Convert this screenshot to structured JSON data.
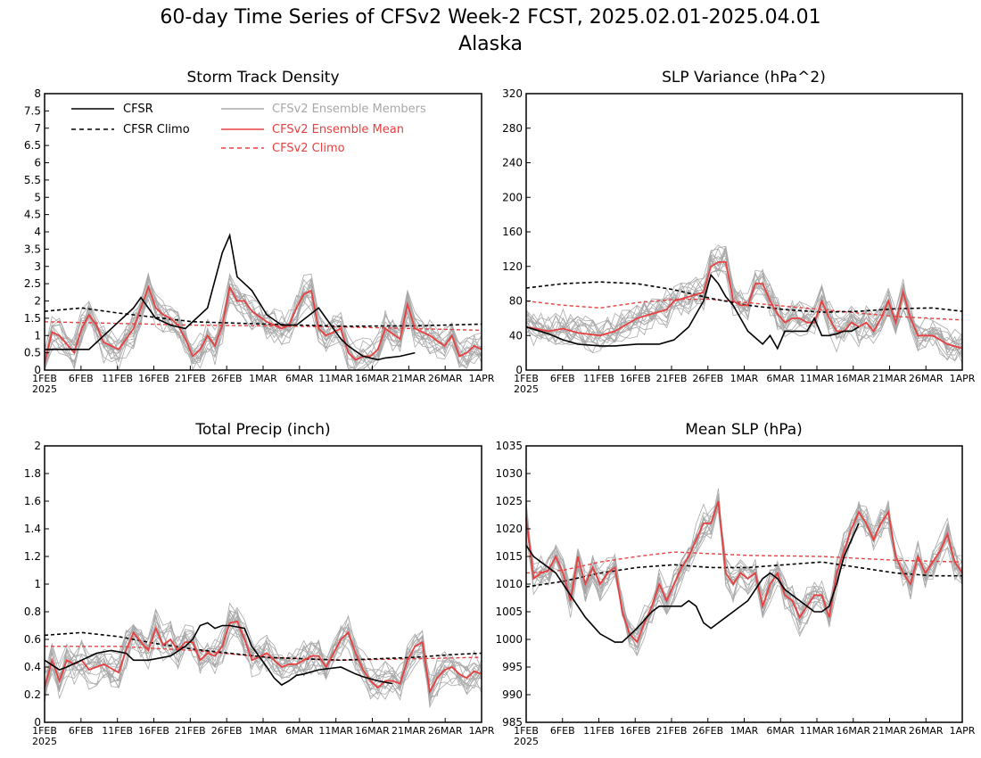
{
  "figure": {
    "title": "60-day Time Series of CFSv2 Week-2 FCST, 2025.02.01-2025.04.01",
    "subtitle": "Alaska",
    "x_ticks": [
      "1FEB",
      "6FEB",
      "11FEB",
      "16FEB",
      "21FEB",
      "26FEB",
      "1MAR",
      "6MAR",
      "11MAR",
      "16MAR",
      "21MAR",
      "26MAR",
      "1APR"
    ],
    "x_year_label": "2025"
  },
  "legend": {
    "cfsr": "CFSR",
    "cfsr_climo": "CFSR Climo",
    "ens_members": "CFSv2 Ensemble Members",
    "ens_mean": "CFSv2 Ensemble Mean",
    "cfsv2_climo": "CFSv2 Climo"
  },
  "colors": {
    "cfsr": "#000000",
    "cfsv2_mean": "#e84040",
    "members": "#a8a8a8",
    "cfsv2_climo": "#e84040"
  },
  "chart_data": [
    {
      "type": "line",
      "title": "Storm Track Density",
      "ylim": [
        0,
        8
      ],
      "yticks": [
        "0",
        "0.5",
        "1",
        "1.5",
        "2",
        "2.5",
        "3",
        "3.5",
        "4",
        "4.5",
        "5",
        "5.5",
        "6",
        "6.5",
        "7",
        "7.5",
        "8"
      ],
      "cfsr": {
        "x": [
          0,
          3,
          6,
          8,
          10,
          12,
          13,
          15,
          17,
          19,
          22,
          24,
          25,
          26,
          27,
          28,
          30,
          32,
          34,
          37,
          39,
          40,
          41,
          43,
          45,
          46,
          48,
          50
        ],
        "y": [
          0.6,
          0.6,
          0.6,
          1.0,
          1.4,
          1.8,
          2.1,
          1.5,
          1.3,
          1.2,
          1.8,
          3.4,
          3.9,
          2.7,
          2.5,
          2.3,
          1.6,
          1.3,
          1.3,
          1.8,
          1.2,
          0.9,
          0.7,
          0.4,
          0.3,
          0.35,
          0.4,
          0.5
        ]
      },
      "cfsr_climo": {
        "x": [
          0,
          5,
          10,
          20,
          30,
          40,
          50,
          59
        ],
        "y": [
          1.7,
          1.8,
          1.65,
          1.4,
          1.33,
          1.27,
          1.28,
          1.33
        ]
      },
      "cfsv2_mean": {
        "x": [
          0,
          1,
          2,
          4,
          5,
          6,
          7,
          8,
          10,
          12,
          13,
          14,
          15,
          16,
          17,
          18,
          19,
          20,
          21,
          22,
          23,
          24,
          25,
          26,
          27,
          28,
          30,
          32,
          33,
          34,
          35,
          36,
          37,
          38,
          40,
          41,
          42,
          43,
          44,
          45,
          46,
          48,
          49,
          50,
          52,
          54,
          55,
          56,
          57,
          58,
          59
        ],
        "y": [
          0.2,
          1.1,
          1.0,
          0.5,
          1.2,
          1.6,
          1.3,
          0.8,
          0.6,
          1.2,
          1.8,
          2.4,
          1.8,
          1.6,
          1.5,
          1.3,
          0.9,
          0.4,
          0.6,
          1.0,
          0.7,
          1.3,
          2.4,
          2.0,
          2.0,
          1.7,
          1.4,
          1.2,
          1.3,
          1.8,
          2.2,
          2.3,
          1.2,
          1.0,
          1.2,
          0.5,
          0.3,
          0.4,
          0.4,
          0.6,
          1.2,
          0.9,
          1.9,
          1.2,
          1.0,
          0.7,
          1.0,
          0.4,
          0.5,
          0.7,
          0.6
        ]
      },
      "cfsv2_climo": {
        "x": [
          0,
          10,
          20,
          30,
          40,
          50,
          59
        ],
        "y": [
          1.4,
          1.35,
          1.3,
          1.28,
          1.25,
          1.2,
          1.15
        ]
      }
    },
    {
      "type": "line",
      "title": "SLP Variance (hPa^2)",
      "ylim": [
        0,
        320
      ],
      "yticks": [
        "0",
        "40",
        "80",
        "120",
        "160",
        "200",
        "240",
        "280",
        "320"
      ],
      "cfsr": {
        "x": [
          0,
          3,
          5,
          7,
          10,
          12,
          15,
          18,
          20,
          22,
          24,
          25,
          26,
          27,
          28,
          30,
          32,
          33,
          34,
          35,
          37,
          38,
          39,
          40,
          41,
          42,
          43,
          44,
          45
        ],
        "y": [
          50,
          42,
          35,
          30,
          28,
          28,
          30,
          30,
          35,
          50,
          80,
          110,
          100,
          85,
          75,
          45,
          30,
          40,
          25,
          45,
          45,
          45,
          60,
          40,
          40,
          42,
          45,
          45,
          50
        ]
      },
      "cfsr_climo": {
        "x": [
          0,
          5,
          10,
          15,
          20,
          25,
          30,
          35,
          40,
          45,
          50,
          55,
          59
        ],
        "y": [
          95,
          100,
          102,
          100,
          93,
          83,
          75,
          70,
          67,
          68,
          71,
          72,
          68
        ]
      },
      "cfsv2_mean": {
        "x": [
          0,
          3,
          5,
          7,
          10,
          12,
          15,
          17,
          19,
          20,
          22,
          24,
          25,
          26,
          27,
          28,
          29,
          30,
          31,
          32,
          33,
          34,
          35,
          36,
          37,
          38,
          39,
          40,
          41,
          42,
          43,
          44,
          45,
          46,
          47,
          48,
          49,
          50,
          51,
          52,
          53,
          55,
          57,
          59
        ],
        "y": [
          50,
          45,
          48,
          43,
          40,
          45,
          60,
          65,
          70,
          80,
          85,
          90,
          120,
          125,
          125,
          80,
          75,
          75,
          100,
          100,
          80,
          65,
          55,
          60,
          60,
          55,
          55,
          80,
          60,
          45,
          45,
          55,
          50,
          55,
          45,
          60,
          80,
          55,
          90,
          60,
          40,
          40,
          30,
          25
        ]
      },
      "cfsv2_climo": {
        "x": [
          0,
          5,
          10,
          15,
          20,
          25,
          30,
          40,
          50,
          59
        ],
        "y": [
          80,
          75,
          72,
          78,
          82,
          82,
          78,
          70,
          62,
          58
        ]
      }
    },
    {
      "type": "line",
      "title": "Total Precip (inch)",
      "ylim": [
        0,
        2
      ],
      "yticks": [
        "0",
        "0.2",
        "0.4",
        "0.6",
        "0.8",
        "1",
        "1.2",
        "1.4",
        "1.6",
        "1.8",
        "2"
      ],
      "cfsr": {
        "x": [
          0,
          2,
          3,
          5,
          7,
          9,
          11,
          12,
          14,
          17,
          19,
          20,
          21,
          22,
          23,
          24,
          25,
          27,
          28,
          30,
          31,
          32,
          33,
          34,
          35,
          37,
          40,
          42,
          43,
          45,
          47
        ],
        "y": [
          0.45,
          0.38,
          0.4,
          0.45,
          0.5,
          0.52,
          0.5,
          0.45,
          0.45,
          0.48,
          0.55,
          0.6,
          0.7,
          0.72,
          0.68,
          0.7,
          0.7,
          0.68,
          0.55,
          0.4,
          0.32,
          0.27,
          0.3,
          0.34,
          0.35,
          0.38,
          0.4,
          0.35,
          0.33,
          0.3,
          0.28
        ]
      },
      "cfsr_climo": {
        "x": [
          0,
          5,
          10,
          15,
          20,
          25,
          30,
          35,
          40,
          45,
          50,
          55,
          59
        ],
        "y": [
          0.63,
          0.65,
          0.62,
          0.57,
          0.53,
          0.5,
          0.47,
          0.46,
          0.45,
          0.46,
          0.47,
          0.49,
          0.5
        ]
      },
      "cfsv2_mean": {
        "x": [
          0,
          1,
          2,
          3,
          4,
          5,
          6,
          8,
          10,
          11,
          12,
          13,
          14,
          15,
          16,
          17,
          18,
          19,
          20,
          21,
          22,
          23,
          24,
          25,
          26,
          27,
          28,
          30,
          31,
          32,
          33,
          34,
          35,
          36,
          37,
          38,
          40,
          41,
          42,
          43,
          44,
          45,
          46,
          47,
          48,
          49,
          50,
          51,
          52,
          53,
          54,
          55,
          56,
          57,
          58,
          59
        ],
        "y": [
          0.25,
          0.45,
          0.3,
          0.45,
          0.42,
          0.45,
          0.38,
          0.42,
          0.36,
          0.52,
          0.65,
          0.58,
          0.52,
          0.68,
          0.56,
          0.6,
          0.52,
          0.58,
          0.58,
          0.45,
          0.5,
          0.48,
          0.55,
          0.72,
          0.73,
          0.6,
          0.45,
          0.5,
          0.45,
          0.4,
          0.42,
          0.42,
          0.45,
          0.48,
          0.48,
          0.4,
          0.6,
          0.65,
          0.5,
          0.38,
          0.3,
          0.25,
          0.3,
          0.3,
          0.28,
          0.45,
          0.55,
          0.58,
          0.22,
          0.32,
          0.38,
          0.4,
          0.35,
          0.32,
          0.37,
          0.35
        ]
      },
      "cfsv2_climo": {
        "x": [
          0,
          10,
          20,
          30,
          40,
          50,
          59
        ],
        "y": [
          0.55,
          0.55,
          0.52,
          0.47,
          0.45,
          0.46,
          0.47
        ]
      }
    },
    {
      "type": "line",
      "title": "Mean SLP (hPa)",
      "ylim": [
        985,
        1035
      ],
      "yticks": [
        "985",
        "990",
        "995",
        "1000",
        "1005",
        "1010",
        "1015",
        "1020",
        "1025",
        "1030",
        "1035"
      ],
      "cfsr": {
        "x": [
          0,
          1,
          2,
          4,
          6,
          8,
          10,
          12,
          13,
          15,
          17,
          18,
          19,
          20,
          21,
          22,
          23,
          24,
          25,
          26,
          27,
          28,
          30,
          31,
          32,
          33,
          34,
          35,
          36,
          37,
          38,
          39,
          40,
          41,
          42,
          43,
          44,
          45
        ],
        "y": [
          1017,
          1015,
          1014,
          1012,
          1008,
          1004,
          1001,
          999.5,
          999.5,
          1002,
          1005,
          1006,
          1006,
          1006,
          1006,
          1007,
          1006,
          1003,
          1002,
          1003,
          1004,
          1005,
          1007,
          1009,
          1011,
          1012,
          1011,
          1009,
          1008,
          1007,
          1006,
          1005,
          1005,
          1006,
          1010,
          1015,
          1018,
          1021
        ]
      },
      "cfsr_climo": {
        "x": [
          0,
          5,
          10,
          15,
          20,
          25,
          30,
          35,
          40,
          45,
          50,
          55,
          59
        ],
        "y": [
          1009.5,
          1010.5,
          1012,
          1013,
          1013.5,
          1013,
          1013,
          1013.5,
          1014,
          1013,
          1012,
          1011.5,
          1011.5
        ]
      },
      "cfsv2_mean": {
        "x": [
          0,
          1,
          2,
          3,
          4,
          5,
          6,
          7,
          8,
          9,
          10,
          11,
          12,
          13,
          14,
          15,
          16,
          17,
          18,
          19,
          20,
          21,
          22,
          23,
          24,
          25,
          26,
          27,
          28,
          29,
          30,
          31,
          32,
          33,
          34,
          35,
          36,
          37,
          38,
          39,
          40,
          41,
          42,
          43,
          44,
          45,
          46,
          47,
          48,
          49,
          50,
          51,
          52,
          53,
          54,
          55,
          56,
          57,
          58,
          59
        ],
        "y": [
          1022,
          1011,
          1012,
          1012.5,
          1015,
          1012,
          1007,
          1015,
          1010,
          1013,
          1010,
          1012,
          1013,
          1005,
          1001,
          999.5,
          1003,
          1006,
          1010,
          1007,
          1010,
          1013,
          1015,
          1018,
          1021,
          1021,
          1025,
          1012,
          1010,
          1012,
          1011,
          1012,
          1006,
          1010,
          1012,
          1008,
          1007,
          1004,
          1006,
          1008,
          1008,
          1004,
          1012,
          1016,
          1020,
          1023,
          1021,
          1018,
          1021,
          1023,
          1015,
          1012,
          1010,
          1015,
          1012,
          1014,
          1016,
          1019,
          1014,
          1012
        ]
      },
      "cfsv2_climo": {
        "x": [
          0,
          5,
          10,
          15,
          20,
          25,
          30,
          40,
          50,
          59
        ],
        "y": [
          1012,
          1012.5,
          1014,
          1015,
          1015.8,
          1015.5,
          1015.2,
          1015,
          1014.3,
          1014
        ]
      }
    }
  ]
}
